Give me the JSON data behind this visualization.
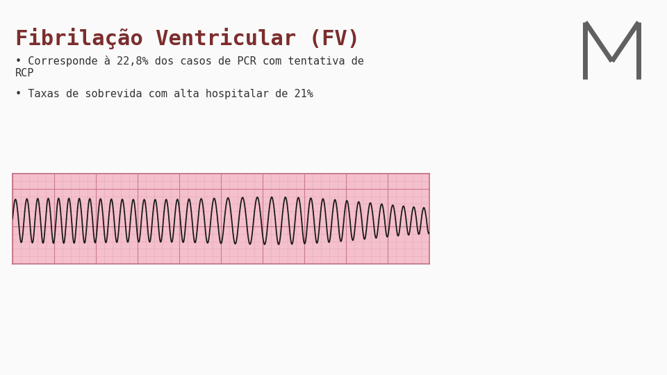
{
  "title": "Fibrilação Ventricular (FV)",
  "title_color": "#7B2D2D",
  "title_fontsize": 22,
  "bg_color": "#FAFAFA",
  "bullet1_line1": "• Corresponde à 22,8% dos casos de PCR com tentativa de",
  "bullet1_line2": "RCP",
  "bullet2": "• Taxas de sobrevida com alta hospitalar de 21%",
  "bullet_color": "#333333",
  "bullet_fontsize": 11,
  "ecg_bg": "#F4C0CC",
  "ecg_grid_minor_color": "#E8A8B8",
  "ecg_grid_major_color": "#C87890",
  "ecg_line_color": "#1a1a1a",
  "ecg_border_color": "#C07080",
  "logo_color": "#606060"
}
